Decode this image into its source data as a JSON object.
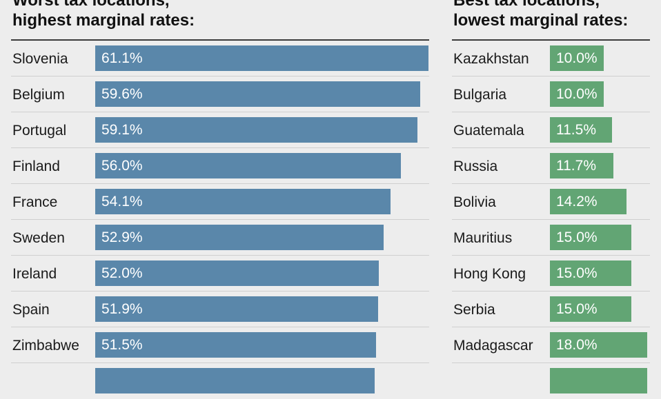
{
  "worst": {
    "title_line1": "Worst tax locations,",
    "title_line2": "highest marginal rates:",
    "color": "#5a87aa"
  },
  "best": {
    "title_line1": "Best tax locations,",
    "title_line2": "lowest marginal rates:",
    "color": "#62a574"
  },
  "chart_data": [
    {
      "type": "bar",
      "orientation": "horizontal",
      "title": "Worst tax locations, highest marginal rates:",
      "categories": [
        "Slovenia",
        "Belgium",
        "Portugal",
        "Finland",
        "France",
        "Sweden",
        "Ireland",
        "Spain",
        "Zimbabwe",
        ""
      ],
      "values": [
        61.1,
        59.6,
        59.1,
        56.0,
        54.1,
        52.9,
        52.0,
        51.9,
        51.5,
        51.2
      ],
      "labels": [
        "61.1%",
        "59.6%",
        "59.1%",
        "56.0%",
        "54.1%",
        "52.9%",
        "52.0%",
        "51.9%",
        "51.5%",
        ""
      ],
      "xlim": [
        0,
        61.1
      ],
      "grid": false
    },
    {
      "type": "bar",
      "orientation": "horizontal",
      "title": "Best tax locations, lowest marginal rates:",
      "categories": [
        "Kazakhstan",
        "Bulgaria",
        "Guatemala",
        "Russia",
        "Bolivia",
        "Mauritius",
        "Hong Kong",
        "Serbia",
        "Madagascar",
        ""
      ],
      "values": [
        10.0,
        10.0,
        11.5,
        11.7,
        14.2,
        15.0,
        15.0,
        15.0,
        18.0,
        18.0
      ],
      "labels": [
        "10.0%",
        "10.0%",
        "11.5%",
        "11.7%",
        "14.2%",
        "15.0%",
        "15.0%",
        "15.0%",
        "18.0%",
        ""
      ],
      "xlim": [
        0,
        18.0
      ],
      "grid": false
    }
  ]
}
